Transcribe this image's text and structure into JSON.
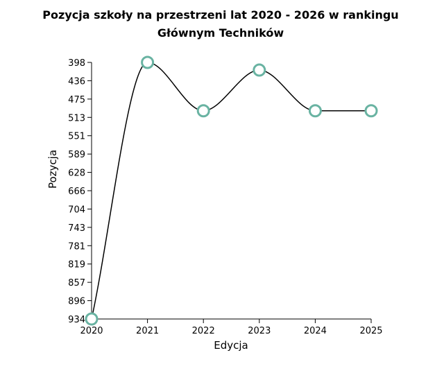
{
  "chart_data": {
    "type": "line",
    "title_lines": [
      "Pozycja szkoły na przestrzeni lat 2020 - 2026 w rankingu",
      "Głównym Techników"
    ],
    "xlabel": "Edycja",
    "ylabel": "Pozycja",
    "x_ticks": [
      "2020",
      "2021",
      "2022",
      "2023",
      "2024",
      "2025"
    ],
    "y_ticks": [
      "398",
      "436",
      "475",
      "513",
      "551",
      "589",
      "628",
      "666",
      "704",
      "743",
      "781",
      "819",
      "857",
      "896",
      "934"
    ],
    "ylim": [
      934,
      398
    ],
    "y_inverted": true,
    "curve": "monotone",
    "series": [
      {
        "x": [
          2020,
          2021,
          2022,
          2023,
          2024,
          2025
        ],
        "y": [
          934,
          398,
          499,
          414,
          499,
          499
        ]
      }
    ],
    "colors": {
      "line": "#000000",
      "marker_stroke": "#69b3a2",
      "marker_fill": "#ffffff"
    }
  }
}
